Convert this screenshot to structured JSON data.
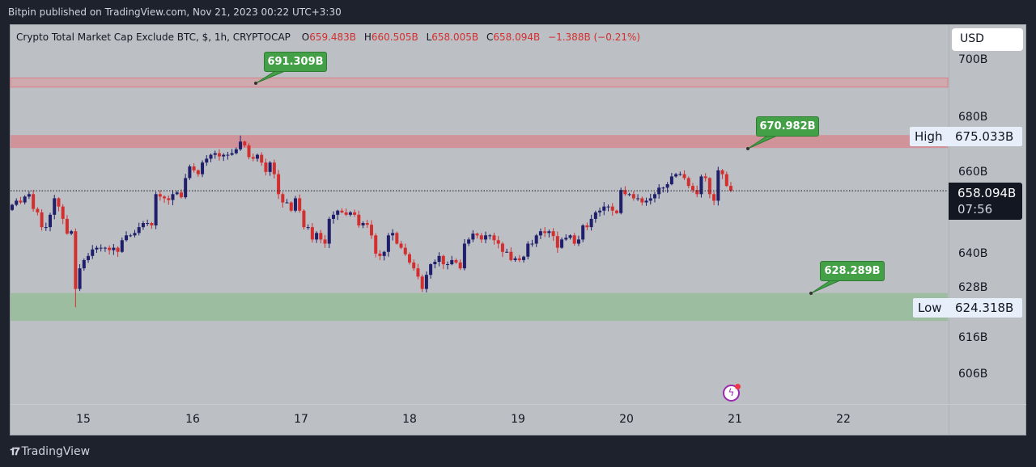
{
  "published": "Bitpin published on TradingView.com, Nov 21, 2023 00:22 UTC+3:30",
  "legend": {
    "symbol": "Crypto Total Market Cap Exclude BTC, $, 1h, CRYPTOCAP",
    "o_label": "O",
    "o": "659.483B",
    "h_label": "H",
    "h": "660.505B",
    "l_label": "L",
    "l": "658.005B",
    "c_label": "C",
    "c": "658.094B",
    "change": "−1.388B (−0.21%)"
  },
  "currency": "USD",
  "price_axis": [
    "700B",
    "680B",
    "660B",
    "640B",
    "628B",
    "616B",
    "606B"
  ],
  "high": {
    "label": "High",
    "value": "675.033B"
  },
  "low": {
    "label": "Low",
    "value": "624.318B"
  },
  "current": {
    "price": "658.094B",
    "countdown": "07:56"
  },
  "time_axis": [
    "15",
    "16",
    "17",
    "18",
    "19",
    "20",
    "21",
    "22"
  ],
  "callouts": [
    "691.309B",
    "670.982B",
    "628.289B"
  ],
  "brand": "TradingView",
  "colors": {
    "up": "#1f1f6b",
    "down": "#d32f2f",
    "resistance": "#cf9399",
    "support": "#9cbd9f"
  },
  "zones": {
    "resistance_thin": [
      690.3,
      693.2
    ],
    "resistance": [
      671.2,
      675.2
    ],
    "support": [
      620.5,
      628.3
    ]
  },
  "chart_data": {
    "type": "candlestick",
    "interval": "1h",
    "first_open": 652.5,
    "closes": [
      654.0,
      655.2,
      654.7,
      656.4,
      657.1,
      652.8,
      651.8,
      647.5,
      647.5,
      651.1,
      655.9,
      653.5,
      649.9,
      645.6,
      646.3,
      629.5,
      635.5,
      637.9,
      639.1,
      641.0,
      641.5,
      641.5,
      641.5,
      640.8,
      641.5,
      640.3,
      643.7,
      645.1,
      645.1,
      645.8,
      647.5,
      648.7,
      648.7,
      648.0,
      657.1,
      656.4,
      655.9,
      655.4,
      657.1,
      657.6,
      656.2,
      661.9,
      665.5,
      664.3,
      663.1,
      666.7,
      667.9,
      669.1,
      669.6,
      668.6,
      669.1,
      669.1,
      669.6,
      670.8,
      673.2,
      672.0,
      668.4,
      667.9,
      669.1,
      666.7,
      663.8,
      666.7,
      663.1,
      657.1,
      654.7,
      654.7,
      652.3,
      655.9,
      652.3,
      647.5,
      647.5,
      643.9,
      645.8,
      643.9,
      642.7,
      649.9,
      651.1,
      652.3,
      651.8,
      651.1,
      651.8,
      651.1,
      648.0,
      648.7,
      648.2,
      645.1,
      639.8,
      639.1,
      640.3,
      645.1,
      645.8,
      642.7,
      641.5,
      639.6,
      637.2,
      635.5,
      633.1,
      629.5,
      633.6,
      636.7,
      637.4,
      639.1,
      636.7,
      636.7,
      637.9,
      637.2,
      635.5,
      642.7,
      643.9,
      645.6,
      645.1,
      643.9,
      645.1,
      645.1,
      643.7,
      642.7,
      640.3,
      640.3,
      637.9,
      638.4,
      637.9,
      638.9,
      642.7,
      642.7,
      645.1,
      646.3,
      645.8,
      646.3,
      644.9,
      641.5,
      643.9,
      644.4,
      645.1,
      642.7,
      643.9,
      648.0,
      647.5,
      649.9,
      651.8,
      652.3,
      653.5,
      653.5,
      652.3,
      651.6,
      658.3,
      657.1,
      657.1,
      655.9,
      655.9,
      654.7,
      655.2,
      655.9,
      657.1,
      659.0,
      659.0,
      660.0,
      662.4,
      663.1,
      663.1,
      661.9,
      659.5,
      658.3,
      657.1,
      662.4,
      661.9,
      657.1,
      655.2,
      664.3,
      663.1,
      659.5,
      658.094
    ],
    "extremes": {
      "low": 624.318,
      "low_index": 15,
      "high": 675.033,
      "high_index": 54
    },
    "current_price": 658.094,
    "ylabel": "USD"
  }
}
